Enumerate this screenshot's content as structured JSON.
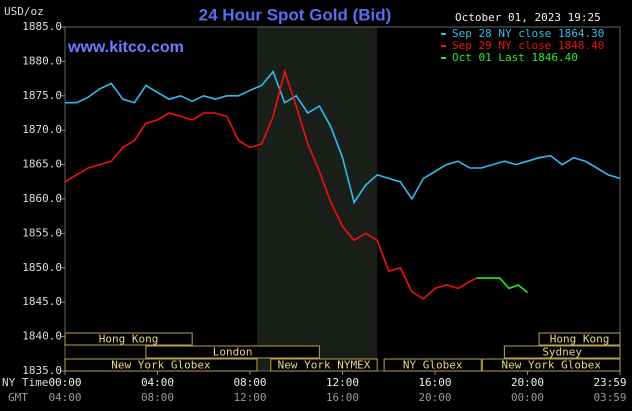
{
  "chart_data": {
    "type": "line",
    "title": "24 Hour Spot Gold (Bid)",
    "y_label": "USD/oz",
    "timestamp": "October 01, 2023 19:25",
    "website": "www.kitco.com",
    "x_row_label": "NY Time",
    "x2_row_label": "GMT",
    "xlim": [
      0,
      24
    ],
    "xticks": [
      {
        "value": 0,
        "label": "00:00"
      },
      {
        "value": 4,
        "label": "04:00"
      },
      {
        "value": 8,
        "label": "08:00"
      },
      {
        "value": 12,
        "label": "12:00"
      },
      {
        "value": 16,
        "label": "16:00"
      },
      {
        "value": 20,
        "label": "20:00"
      },
      {
        "value": 24,
        "label": "23:59"
      }
    ],
    "x2ticks": [
      "04:00",
      "08:00",
      "12:00",
      "16:00",
      "20:00",
      "00:00",
      "03:59"
    ],
    "ylim": [
      1835,
      1885
    ],
    "yticks": [
      {
        "value": 1835,
        "label": "1835.0"
      },
      {
        "value": 1840,
        "label": "1840.0"
      },
      {
        "value": 1845,
        "label": "1845.0"
      },
      {
        "value": 1850,
        "label": "1850.0"
      },
      {
        "value": 1855,
        "label": "1855.0"
      },
      {
        "value": 1860,
        "label": "1860.0"
      },
      {
        "value": 1865,
        "label": "1865.0"
      },
      {
        "value": 1870,
        "label": "1870.0"
      },
      {
        "value": 1875,
        "label": "1875.0"
      },
      {
        "value": 1880,
        "label": "1880.0"
      },
      {
        "value": 1885,
        "label": "1885.0"
      }
    ],
    "shade": [
      8.3,
      13.5
    ],
    "sessions": [
      {
        "label": "Hong Kong",
        "start": 0,
        "end": 5.5
      },
      {
        "label": "Hong Kong",
        "start": 20.5,
        "end": 24
      },
      {
        "label": "London",
        "start": 3.5,
        "end": 11
      },
      {
        "label": "Sydney",
        "start": 19,
        "end": 24
      },
      {
        "label": "New York Globex",
        "start": 0,
        "end": 8.3
      },
      {
        "label": "New York NYMEX",
        "start": 8.9,
        "end": 13.5
      },
      {
        "label": "NY Globex",
        "start": 13.8,
        "end": 18
      },
      {
        "label": "New York Globex",
        "start": 18.05,
        "end": 24
      }
    ],
    "series": [
      {
        "name": "Sep 28 NY close 1864.30",
        "color": "#33bbee",
        "x": [
          0,
          0.5,
          1,
          1.5,
          2,
          2.5,
          3,
          3.5,
          4,
          4.5,
          5,
          5.5,
          6,
          6.5,
          7,
          7.5,
          8,
          8.5,
          9,
          9.5,
          10,
          10.5,
          11,
          11.5,
          12,
          12.5,
          13,
          13.5,
          14,
          14.5,
          15,
          15.5,
          16,
          16.5,
          17,
          17.5,
          18,
          18.5,
          19,
          19.5,
          20,
          20.5,
          21,
          21.5,
          22,
          22.5,
          23,
          23.5,
          24
        ],
        "values": [
          1874,
          1874,
          1874.8,
          1876,
          1876.8,
          1874.5,
          1874,
          1876.5,
          1875.5,
          1874.5,
          1875,
          1874.2,
          1875,
          1874.5,
          1875,
          1875,
          1875.8,
          1876.5,
          1878.5,
          1874,
          1875,
          1872.5,
          1873.5,
          1870.5,
          1866,
          1859.5,
          1862,
          1863.5,
          1863,
          1862.5,
          1860,
          1863,
          1864,
          1865,
          1865.5,
          1864.5,
          1864.5,
          1865,
          1865.5,
          1865,
          1865.5,
          1866,
          1866.3,
          1865,
          1866,
          1865.5,
          1864.5,
          1863.5,
          1863
        ]
      },
      {
        "name": "Sep 29 NY close 1848.40",
        "color": "#ee1111",
        "x": [
          0,
          0.5,
          1,
          1.5,
          2,
          2.5,
          3,
          3.5,
          4,
          4.5,
          5,
          5.5,
          6,
          6.5,
          7,
          7.5,
          8,
          8.5,
          9,
          9.5,
          10,
          10.5,
          11,
          11.5,
          12,
          12.5,
          13,
          13.5,
          14,
          14.5,
          15,
          15.5,
          16,
          16.5,
          17,
          17.5,
          17.8
        ],
        "values": [
          1862.5,
          1863.5,
          1864.5,
          1865,
          1865.5,
          1867.5,
          1868.5,
          1871,
          1871.5,
          1872.5,
          1872,
          1871.5,
          1872.5,
          1872.5,
          1872,
          1868.5,
          1867.5,
          1868,
          1872,
          1878.5,
          1873.5,
          1868,
          1864,
          1859.5,
          1856,
          1854,
          1855,
          1854,
          1849.5,
          1850,
          1846.5,
          1845.5,
          1847,
          1847.5,
          1847,
          1848,
          1848.5
        ]
      },
      {
        "name": "Oct 01 Last 1846.40",
        "color": "#22ee22",
        "x": [
          17.8,
          18.2,
          18.8,
          19.2,
          19.6,
          20
        ],
        "values": [
          1848.5,
          1848.5,
          1848.5,
          1847,
          1847.5,
          1846.4
        ]
      }
    ]
  }
}
